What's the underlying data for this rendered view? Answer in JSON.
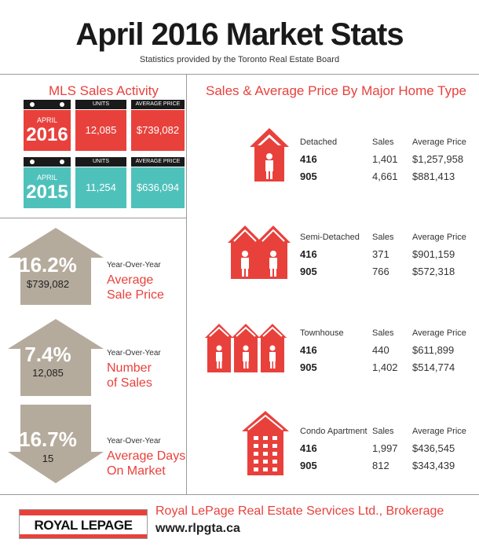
{
  "header": {
    "title": "April 2016 Market Stats",
    "subtitle": "Statistics provided by the Toronto Real Estate Board"
  },
  "mls": {
    "title": "MLS Sales Activity",
    "col_units": "UNITS",
    "col_avg_price": "AVERAGE PRICE",
    "rows": [
      {
        "month": "APRIL",
        "year": "2016",
        "units": "12,085",
        "avg_price": "$739,082",
        "color": "#e8413c"
      },
      {
        "month": "APRIL",
        "year": "2015",
        "units": "11,254",
        "avg_price": "$636,094",
        "color": "#4fc1bb"
      }
    ]
  },
  "yoy": [
    {
      "pct": "16.2%",
      "value": "$739,082",
      "label": "Year-Over-Year",
      "line1": "Average",
      "line2": "Sale Price",
      "direction": "up"
    },
    {
      "pct": "7.4%",
      "value": "12,085",
      "label": "Year-Over-Year",
      "line1": "Number",
      "line2": "of Sales",
      "direction": "up"
    },
    {
      "pct": "16.7%",
      "value": "15",
      "label": "Year-Over-Year",
      "line1": "Average Days",
      "line2": "On Market",
      "direction": "down"
    }
  ],
  "home_types": {
    "title": "Sales & Average Price By Major Home Type",
    "col_sales": "Sales",
    "col_avg_price": "Average Price",
    "types": [
      {
        "name": "Detached",
        "icon": "detached-house-icon",
        "rows": [
          {
            "code": "416",
            "sales": "1,401",
            "price": "$1,257,958"
          },
          {
            "code": "905",
            "sales": "4,661",
            "price": "$881,413"
          }
        ]
      },
      {
        "name": "Semi-Detached",
        "icon": "semi-detached-icon",
        "rows": [
          {
            "code": "416",
            "sales": "371",
            "price": "$901,159"
          },
          {
            "code": "905",
            "sales": "766",
            "price": "$572,318"
          }
        ]
      },
      {
        "name": "Townhouse",
        "icon": "townhouse-icon",
        "rows": [
          {
            "code": "416",
            "sales": "440",
            "price": "$611,899"
          },
          {
            "code": "905",
            "sales": "1,402",
            "price": "$514,774"
          }
        ]
      },
      {
        "name": "Condo Apartment",
        "icon": "condo-icon",
        "rows": [
          {
            "code": "416",
            "sales": "1,997",
            "price": "$436,545"
          },
          {
            "code": "905",
            "sales": "812",
            "price": "$343,439"
          }
        ]
      }
    ]
  },
  "footer": {
    "logo": "ROYAL LEPAGE",
    "company": "Royal LePage Real Estate Services Ltd., Brokerage",
    "url": "www.rlpgta.ca"
  },
  "colors": {
    "accent": "#e8413c",
    "teal": "#4fc1bb",
    "arrow": "#b5ab9d"
  }
}
